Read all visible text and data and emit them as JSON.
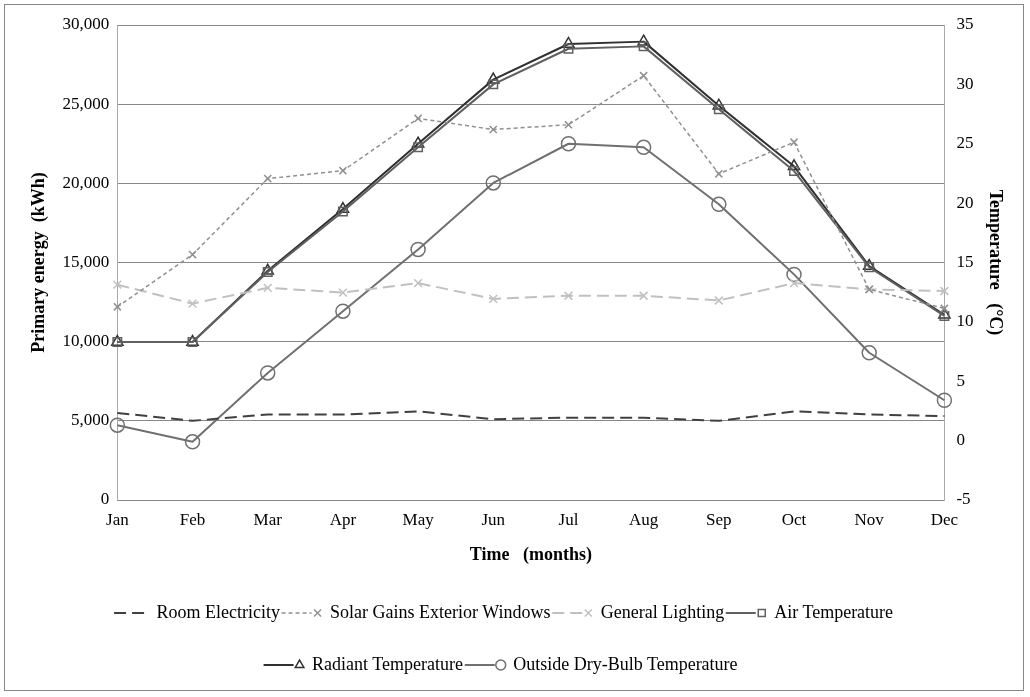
{
  "chart_data": {
    "type": "line",
    "xlabel": "Time   (months)",
    "ylabel": "Primary energy  (kWh)",
    "y2label": "Temperature   (°C)",
    "categories": [
      "Jan",
      "Feb",
      "Mar",
      "Apr",
      "May",
      "Jun",
      "Jul",
      "Aug",
      "Sep",
      "Oct",
      "Nov",
      "Dec"
    ],
    "ylim": [
      0,
      30000
    ],
    "yticks": [
      0,
      {
        "value": 5000,
        "label": "5,000"
      },
      {
        "value": 10000,
        "label": "10,000"
      },
      {
        "value": 15000,
        "label": "15,000"
      },
      {
        "value": 20000,
        "label": "20,000"
      },
      {
        "value": 25000,
        "label": "25,000"
      },
      {
        "value": 30000,
        "label": "30,000"
      }
    ],
    "y2lim": [
      -5,
      35
    ],
    "y2ticks": [
      -5,
      0,
      5,
      10,
      15,
      20,
      25,
      30,
      35
    ],
    "grid": "y",
    "legend": "bottom",
    "series": [
      {
        "name": "Room Electricity",
        "color": "#404040",
        "line_style": "dashed",
        "marker": "none",
        "values": [
          5500,
          5000,
          5400,
          5400,
          5600,
          5100,
          5200,
          5200,
          5000,
          5600,
          5400,
          5300
        ]
      },
      {
        "name": "Solar Gains Exterior Windows",
        "color": "#909090",
        "line_style": "dotted",
        "marker": "cross",
        "values": [
          12200,
          15500,
          20300,
          20800,
          24100,
          23400,
          23700,
          26800,
          20600,
          22600,
          13300,
          12100
        ]
      },
      {
        "name": "General Lighting",
        "color": "#c0c0c0",
        "line_style": "dashed",
        "marker": "cross",
        "values": [
          13600,
          12400,
          13400,
          13100,
          13700,
          12700,
          12900,
          12900,
          12600,
          13700,
          13300,
          13200
        ]
      },
      {
        "name": "Air Temperature",
        "color": "#606060",
        "line_style": "solid",
        "marker": "square",
        "axis": "y2",
        "values": [
          8.3,
          8.3,
          14.2,
          19.3,
          24.7,
          30.0,
          33.0,
          33.2,
          27.9,
          22.7,
          14.6,
          10.5
        ]
      },
      {
        "name": "Radiant Temperature",
        "color": "#303030",
        "line_style": "solid",
        "marker": "triangle",
        "axis": "y2",
        "values": [
          8.3,
          8.3,
          14.3,
          19.5,
          25.0,
          30.4,
          33.4,
          33.6,
          28.2,
          23.1,
          14.7,
          10.6
        ]
      },
      {
        "name": "Outside Dry-Bulb Temperature",
        "color": "#707070",
        "line_style": "solid",
        "marker": "circle",
        "axis": "y2",
        "values": [
          1.3,
          -0.1,
          5.7,
          10.9,
          16.1,
          21.7,
          25.0,
          24.7,
          19.9,
          14.0,
          7.4,
          3.4
        ]
      }
    ]
  }
}
